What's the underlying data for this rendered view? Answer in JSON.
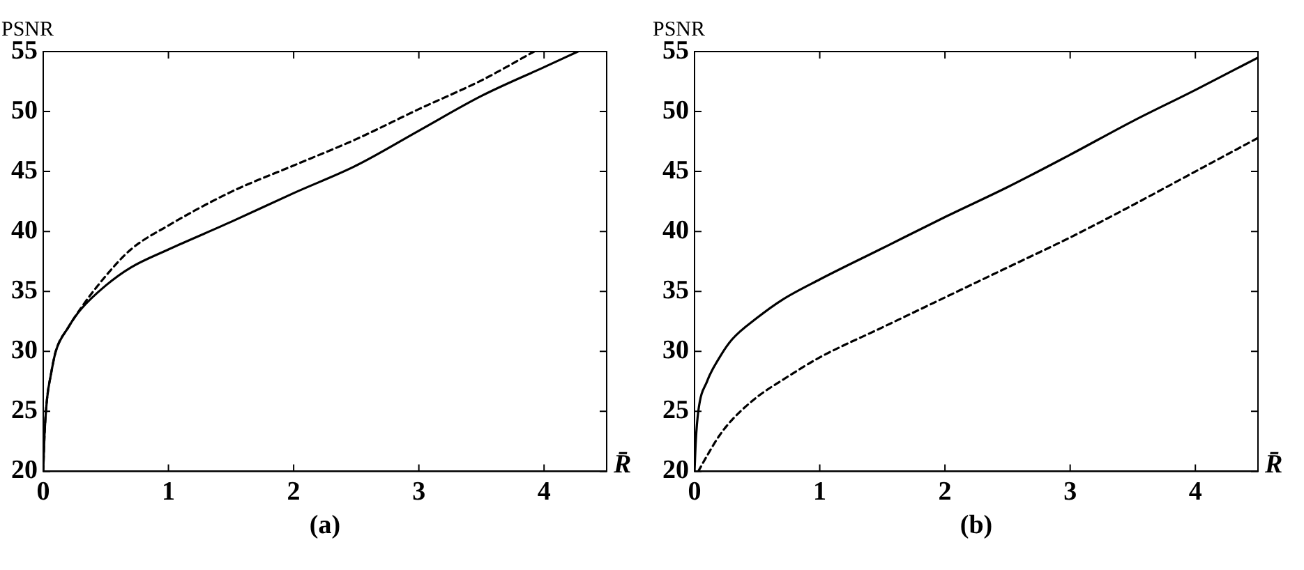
{
  "chart_data": [
    {
      "type": "line",
      "ylabel": "PSNR",
      "xlabel": "R̄",
      "annotations": [
        "(a)"
      ],
      "xlim": [
        0,
        4.5
      ],
      "ylim": [
        20,
        55
      ],
      "xticks": [
        0,
        1,
        2,
        3,
        4
      ],
      "yticks": [
        20,
        25,
        30,
        35,
        40,
        45,
        50,
        55
      ],
      "grid": false,
      "legend": false,
      "marker": "none",
      "series": [
        {
          "color": "#000000",
          "line_style": "solid",
          "x": [
            0,
            0.01,
            0.03,
            0.06,
            0.1,
            0.2,
            0.3,
            0.5,
            0.7,
            1,
            1.5,
            2,
            2.5,
            3,
            3.5,
            4,
            4.27
          ],
          "values": [
            20,
            23,
            26,
            28,
            30,
            32,
            33.5,
            35.5,
            37,
            38.5,
            40.8,
            43.2,
            45.5,
            48.4,
            51.3,
            53.7,
            55
          ]
        },
        {
          "color": "#000000",
          "line_style": "dashed",
          "x": [
            0,
            0.01,
            0.03,
            0.06,
            0.1,
            0.2,
            0.3,
            0.5,
            0.7,
            1,
            1.5,
            2,
            2.5,
            3,
            3.5,
            3.92
          ],
          "values": [
            20,
            23,
            26,
            28,
            30,
            32,
            33.6,
            36.3,
            38.5,
            40.5,
            43.3,
            45.5,
            47.7,
            50.2,
            52.6,
            55
          ]
        }
      ]
    },
    {
      "type": "line",
      "ylabel": "PSNR",
      "xlabel": "R̄",
      "annotations": [
        "(b)"
      ],
      "xlim": [
        0,
        4.5
      ],
      "ylim": [
        20,
        55
      ],
      "xticks": [
        0,
        1,
        2,
        3,
        4
      ],
      "yticks": [
        20,
        25,
        30,
        35,
        40,
        45,
        50,
        55
      ],
      "grid": false,
      "legend": false,
      "marker": "none",
      "series": [
        {
          "color": "#000000",
          "line_style": "solid",
          "x": [
            0,
            0.01,
            0.03,
            0.1,
            0.2,
            0.3,
            0.5,
            0.7,
            1,
            1.5,
            2,
            2.5,
            3,
            3.5,
            4,
            4.5
          ],
          "values": [
            20,
            22.5,
            25,
            27.5,
            29.5,
            31,
            32.8,
            34.3,
            36,
            38.6,
            41.2,
            43.7,
            46.4,
            49.2,
            51.8,
            54.5
          ]
        },
        {
          "color": "#000000",
          "line_style": "dashed",
          "x": [
            0.03,
            0.1,
            0.2,
            0.3,
            0.5,
            0.7,
            1,
            1.5,
            2,
            2.5,
            3,
            3.5,
            4,
            4.5
          ],
          "values": [
            20,
            21.3,
            23,
            24.3,
            26.2,
            27.6,
            29.5,
            32,
            34.5,
            37,
            39.5,
            42.2,
            45,
            47.8
          ]
        }
      ]
    }
  ]
}
